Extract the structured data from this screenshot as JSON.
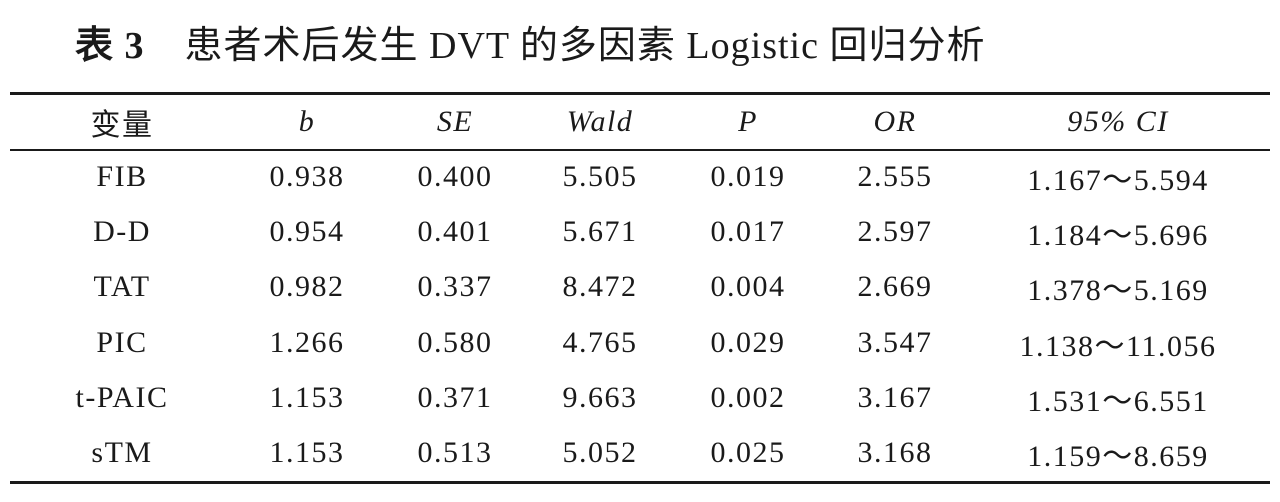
{
  "title": {
    "label": "表 3",
    "text": "患者术后发生 DVT 的多因素 Logistic 回归分析"
  },
  "table": {
    "headers": [
      "变量",
      "b",
      "SE",
      "Wald",
      "P",
      "OR",
      "95% CI"
    ],
    "rows": [
      [
        "FIB",
        "0.938",
        "0.400",
        "5.505",
        "0.019",
        "2.555",
        "1.167～5.594"
      ],
      [
        "D-D",
        "0.954",
        "0.401",
        "5.671",
        "0.017",
        "2.597",
        "1.184～5.696"
      ],
      [
        "TAT",
        "0.982",
        "0.337",
        "8.472",
        "0.004",
        "2.669",
        "1.378～5.169"
      ],
      [
        "PIC",
        "1.266",
        "0.580",
        "4.765",
        "0.029",
        "3.547",
        "1.138～11.056"
      ],
      [
        "t-PAIC",
        "1.153",
        "0.371",
        "9.663",
        "0.002",
        "3.167",
        "1.531～6.551"
      ],
      [
        "sTM",
        "1.153",
        "0.513",
        "5.052",
        "0.025",
        "3.168",
        "1.159～8.659"
      ]
    ]
  }
}
